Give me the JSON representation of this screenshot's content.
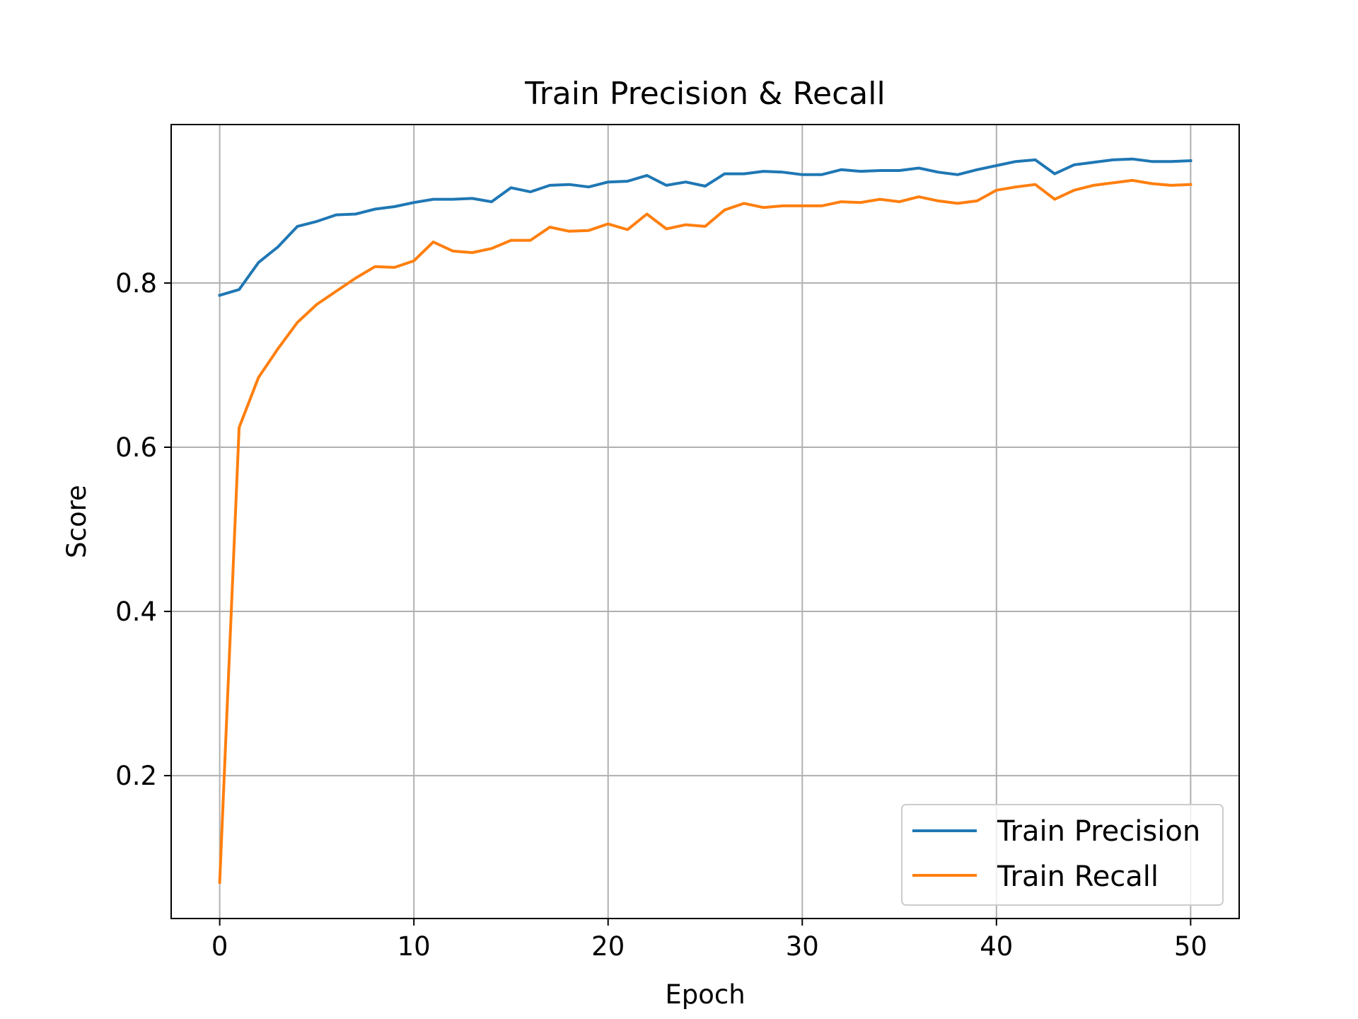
{
  "chart_data": {
    "type": "line",
    "title": "Train Precision & Recall",
    "xlabel": "Epoch",
    "ylabel": "Score",
    "xlim": [
      -2.5,
      52.5
    ],
    "ylim": [
      0.026,
      0.993
    ],
    "xticks": [
      0,
      10,
      20,
      30,
      40,
      50
    ],
    "xtick_labels": [
      "0",
      "10",
      "20",
      "30",
      "40",
      "50"
    ],
    "yticks": [
      0.2,
      0.4,
      0.6,
      0.8
    ],
    "ytick_labels": [
      "0.2",
      "0.4",
      "0.6",
      "0.8"
    ],
    "grid": true,
    "legend_position": "lower-right",
    "x": [
      0,
      1,
      2,
      3,
      4,
      5,
      6,
      7,
      8,
      9,
      10,
      11,
      12,
      13,
      14,
      15,
      16,
      17,
      18,
      19,
      20,
      21,
      22,
      23,
      24,
      25,
      26,
      27,
      28,
      29,
      30,
      31,
      32,
      33,
      34,
      35,
      36,
      37,
      38,
      39,
      40,
      41,
      42,
      43,
      44,
      45,
      46,
      47,
      48,
      49,
      50
    ],
    "series": [
      {
        "name": "Train Precision",
        "color": "#1f77b4",
        "values": [
          0.785,
          0.792,
          0.825,
          0.844,
          0.869,
          0.875,
          0.883,
          0.884,
          0.89,
          0.893,
          0.898,
          0.902,
          0.902,
          0.903,
          0.899,
          0.916,
          0.911,
          0.919,
          0.92,
          0.917,
          0.923,
          0.924,
          0.931,
          0.919,
          0.923,
          0.918,
          0.933,
          0.933,
          0.936,
          0.935,
          0.932,
          0.932,
          0.938,
          0.936,
          0.937,
          0.937,
          0.94,
          0.935,
          0.932,
          0.938,
          0.943,
          0.948,
          0.95,
          0.933,
          0.944,
          0.947,
          0.95,
          0.951,
          0.948,
          0.948,
          0.949
        ]
      },
      {
        "name": "Train Recall",
        "color": "#ff7f0e",
        "values": [
          0.07,
          0.624,
          0.685,
          0.72,
          0.752,
          0.774,
          0.79,
          0.806,
          0.82,
          0.819,
          0.827,
          0.85,
          0.839,
          0.837,
          0.842,
          0.852,
          0.852,
          0.868,
          0.863,
          0.864,
          0.872,
          0.865,
          0.884,
          0.866,
          0.871,
          0.869,
          0.889,
          0.897,
          0.892,
          0.894,
          0.894,
          0.894,
          0.899,
          0.898,
          0.902,
          0.899,
          0.905,
          0.9,
          0.897,
          0.9,
          0.913,
          0.917,
          0.92,
          0.902,
          0.913,
          0.919,
          0.922,
          0.925,
          0.921,
          0.919,
          0.92
        ]
      }
    ]
  }
}
